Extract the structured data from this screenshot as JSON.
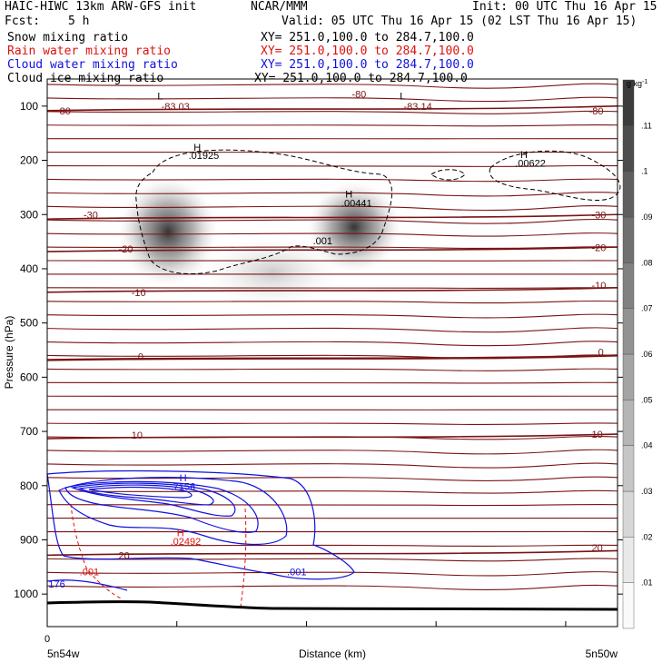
{
  "header": {
    "model_line": "HAIC-HIWC 13km ARW-GFS init",
    "org": "NCAR/MMM",
    "init": "Init: 00 UTC Thu 16 Apr 15",
    "fcst_label": "Fcst:",
    "fcst_value": "5 h",
    "valid": "Valid: 05 UTC Thu 16 Apr 15 (02 LST Thu 16 Apr 15)"
  },
  "fields": [
    {
      "label": "Snow mixing ratio",
      "xy": "XY= 251.0,100.0 to 284.7,100.0",
      "color": "#000000"
    },
    {
      "label": "Rain water mixing ratio",
      "xy": "XY= 251.0,100.0 to 284.7,100.0",
      "color": "#e01010"
    },
    {
      "label": "Cloud water mixing ratio",
      "xy": "XY= 251.0,100.0 to 284.7,100.0",
      "color": "#1010e0"
    },
    {
      "label": "Cloud ice mixing ratio",
      "xy": "XY= 251.0,100.0 to 284.7,100.0",
      "color": "#000000"
    }
  ],
  "colors": {
    "temperature": "#7a1414",
    "rain": "#e01010",
    "cloud_water": "#1010e0",
    "ice": "#000000",
    "terrain": "#000000"
  },
  "chart_data": {
    "type": "heatmap",
    "ylabel": "Pressure (hPa)",
    "xlabel": "Distance (km)",
    "x_range": [
      0,
      44
    ],
    "y_range": [
      1060,
      50
    ],
    "y_ticks": [
      100,
      200,
      300,
      400,
      500,
      600,
      700,
      800,
      900,
      1000
    ],
    "x_ticks": [
      0,
      10,
      20,
      30,
      40
    ],
    "x_tick_labels": [
      "0"
    ],
    "x_end_labels": [
      "5n54w",
      "5n50w"
    ],
    "colorbar": {
      "unit": "g kg",
      "unit_exp": "-1",
      "labels": [
        ".01",
        ".02",
        ".03",
        ".04",
        ".05",
        ".06",
        ".07",
        ".08",
        ".09",
        ".1",
        ".11"
      ],
      "levels": 12
    },
    "temperature_contours": [
      {
        "label": "-80",
        "pressure": 105
      },
      {
        "label": "-30",
        "pressure": 305
      },
      {
        "label": "-20",
        "pressure": 365
      },
      {
        "label": "-10",
        "pressure": 440
      },
      {
        "label": "0",
        "pressure": 565
      },
      {
        "label": "10",
        "pressure": 710
      },
      {
        "label": "20",
        "pressure": 925
      }
    ],
    "annotations": [
      {
        "text": "L",
        "color": "ice",
        "x": 8.5,
        "p": 88
      },
      {
        "text": "-83.03",
        "color": "temperature",
        "x": 8.8,
        "p": 107
      },
      {
        "text": "-80",
        "color": "temperature",
        "x": 23.5,
        "p": 84
      },
      {
        "text": "L",
        "color": "ice",
        "x": 27.2,
        "p": 88
      },
      {
        "text": "-83.14",
        "color": "temperature",
        "x": 27.5,
        "p": 107
      },
      {
        "text": "-80",
        "color": "temperature",
        "x": 0.7,
        "p": 115
      },
      {
        "text": "-80",
        "color": "temperature",
        "x": 41.8,
        "p": 115
      },
      {
        "text": "H",
        "color": "ice",
        "x": 11.3,
        "p": 182
      },
      {
        "text": ".01925",
        "color": "ice",
        "x": 10.9,
        "p": 197
      },
      {
        "text": "H",
        "color": "ice",
        "x": 36.5,
        "p": 196
      },
      {
        "text": ".00622",
        "color": "ice",
        "x": 36.1,
        "p": 212
      },
      {
        "text": "H",
        "color": "ice",
        "x": 23.0,
        "p": 269
      },
      {
        "text": ".00441",
        "color": "ice",
        "x": 22.7,
        "p": 285
      },
      {
        "text": ".001",
        "color": "ice",
        "x": 20.5,
        "p": 355
      },
      {
        "text": "-30",
        "color": "temperature",
        "x": 2.8,
        "p": 307
      },
      {
        "text": "-30",
        "color": "temperature",
        "x": 42.0,
        "p": 307
      },
      {
        "text": "-20",
        "color": "temperature",
        "x": 5.5,
        "p": 370
      },
      {
        "text": "-20",
        "color": "temperature",
        "x": 42.0,
        "p": 367
      },
      {
        "text": "-10",
        "color": "temperature",
        "x": 6.5,
        "p": 450
      },
      {
        "text": "-10",
        "color": "temperature",
        "x": 42.0,
        "p": 437
      },
      {
        "text": "0",
        "color": "temperature",
        "x": 7.0,
        "p": 568
      },
      {
        "text": "0",
        "color": "temperature",
        "x": 42.5,
        "p": 560
      },
      {
        "text": "10",
        "color": "temperature",
        "x": 6.5,
        "p": 713
      },
      {
        "text": "10",
        "color": "temperature",
        "x": 42.0,
        "p": 712
      },
      {
        "text": "H",
        "color": "cloud_water",
        "x": 10.2,
        "p": 792
      },
      {
        "text": ".7156",
        "color": "cloud_water",
        "x": 9.5,
        "p": 808
      },
      {
        "text": "H",
        "color": "rain",
        "x": 10.0,
        "p": 893
      },
      {
        "text": ".02492",
        "color": "rain",
        "x": 9.5,
        "p": 909
      },
      {
        "text": "20",
        "color": "temperature",
        "x": 5.5,
        "p": 935
      },
      {
        "text": "20",
        "color": "temperature",
        "x": 42.0,
        "p": 921
      },
      {
        "text": ".001",
        "color": "rain",
        "x": 2.5,
        "p": 965
      },
      {
        "text": "176",
        "color": "cloud_water",
        "x": 0.1,
        "p": 988
      },
      {
        "text": ".001",
        "color": "cloud_water",
        "x": 18.5,
        "p": 965
      }
    ]
  }
}
